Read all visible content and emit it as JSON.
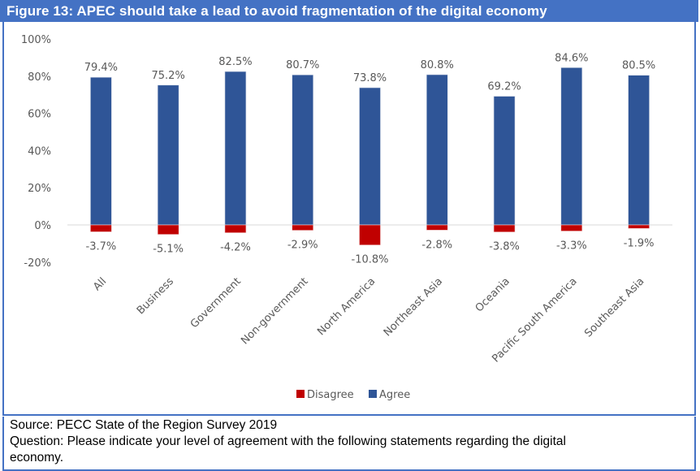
{
  "header": {
    "title": "Figure 13: APEC should take a lead to avoid fragmentation of the digital economy"
  },
  "chart_data": {
    "type": "bar",
    "stacked": true,
    "title": "Figure 13: APEC should take a lead to avoid fragmentation of the digital economy",
    "xlabel": "",
    "ylabel": "",
    "ylim": [
      -20,
      100
    ],
    "yticks": [
      -20,
      0,
      20,
      40,
      60,
      80,
      100
    ],
    "ytick_labels": [
      "-20%",
      "0%",
      "20%",
      "40%",
      "60%",
      "80%",
      "100%"
    ],
    "grid": false,
    "categories": [
      "All",
      "Business",
      "Government",
      "Non-government",
      "North America",
      "Northeast Asia",
      "Oceania",
      "Pacific South America",
      "Southeast Asia"
    ],
    "series": [
      {
        "name": "Disagree",
        "color": "#c00000",
        "values": [
          -3.7,
          -5.1,
          -4.2,
          -2.9,
          -10.8,
          -2.8,
          -3.8,
          -3.3,
          -1.9
        ],
        "labels": [
          "-3.7%",
          "-5.1%",
          "-4.2%",
          "-2.9%",
          "-10.8%",
          "-2.8%",
          "-3.8%",
          "-3.3%",
          "-1.9%"
        ]
      },
      {
        "name": "Agree",
        "color": "#2f5597",
        "values": [
          79.4,
          75.2,
          82.5,
          80.7,
          73.8,
          80.8,
          69.2,
          84.6,
          80.5
        ],
        "labels": [
          "79.4%",
          "75.2%",
          "82.5%",
          "80.7%",
          "73.8%",
          "80.8%",
          "69.2%",
          "84.6%",
          "80.5%"
        ]
      }
    ],
    "legend": {
      "position": "bottom",
      "entries": [
        "Disagree",
        "Agree"
      ]
    }
  },
  "source": {
    "line1": "Source: PECC State of the Region Survey 2019",
    "line2": "Question: Please indicate your level of agreement with the following statements regarding the digital",
    "line3": "economy."
  },
  "colors": {
    "frame": "#4472c4",
    "agree": "#2f5597",
    "disagree": "#c00000",
    "text": "#595959"
  }
}
